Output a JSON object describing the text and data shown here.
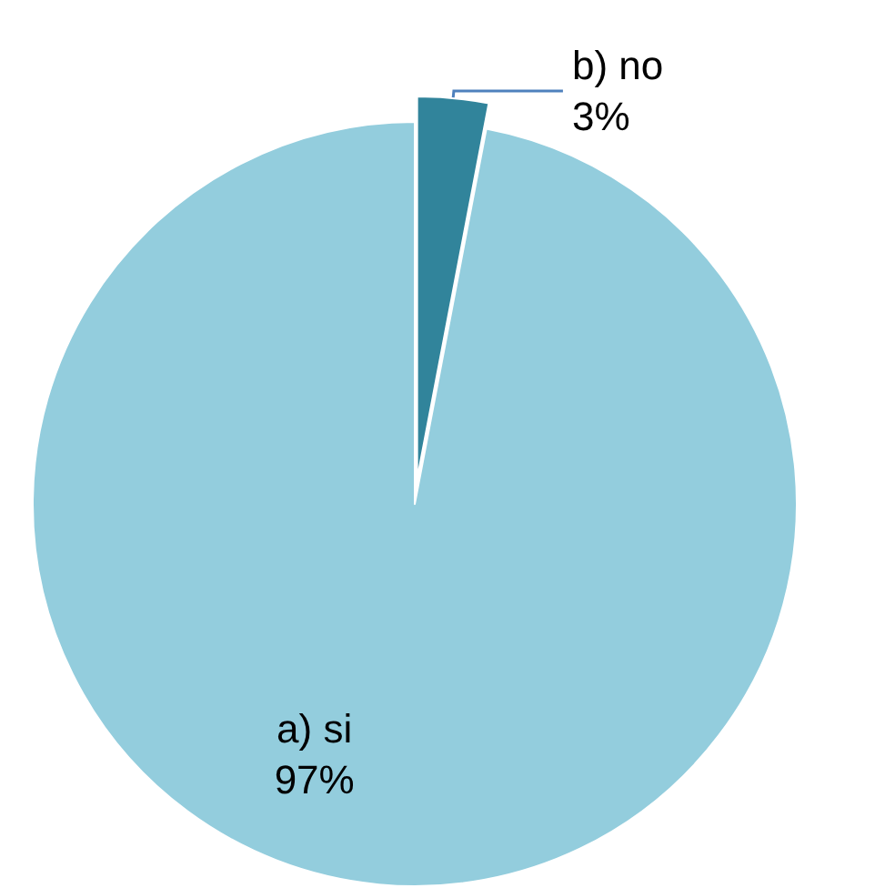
{
  "chart_data": {
    "type": "pie",
    "categories": [
      "a) si",
      "b) no"
    ],
    "values": [
      97,
      3
    ],
    "colors": [
      "#93cddd",
      "#31849b"
    ],
    "legend": false,
    "value_labels": [
      "97%",
      "3%"
    ]
  }
}
